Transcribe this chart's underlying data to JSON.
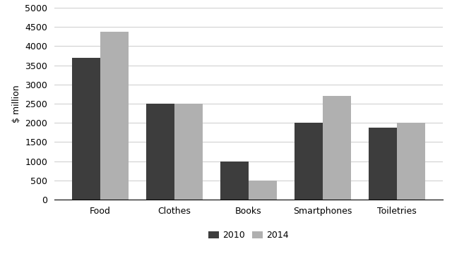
{
  "categories": [
    "Food",
    "Clothes",
    "Books",
    "Smartphones",
    "Toiletries"
  ],
  "values_2010": [
    3700,
    2500,
    1000,
    2000,
    1875
  ],
  "values_2014": [
    4375,
    2500,
    500,
    2700,
    2000
  ],
  "color_2010": "#3d3d3d",
  "color_2014": "#b0b0b0",
  "ylabel": "$ million",
  "ylim": [
    0,
    5000
  ],
  "yticks": [
    0,
    500,
    1000,
    1500,
    2000,
    2500,
    3000,
    3500,
    4000,
    4500,
    5000
  ],
  "legend_labels": [
    "2010",
    "2014"
  ],
  "bar_width": 0.38,
  "background_color": "#ffffff",
  "grid_color": "#cccccc"
}
